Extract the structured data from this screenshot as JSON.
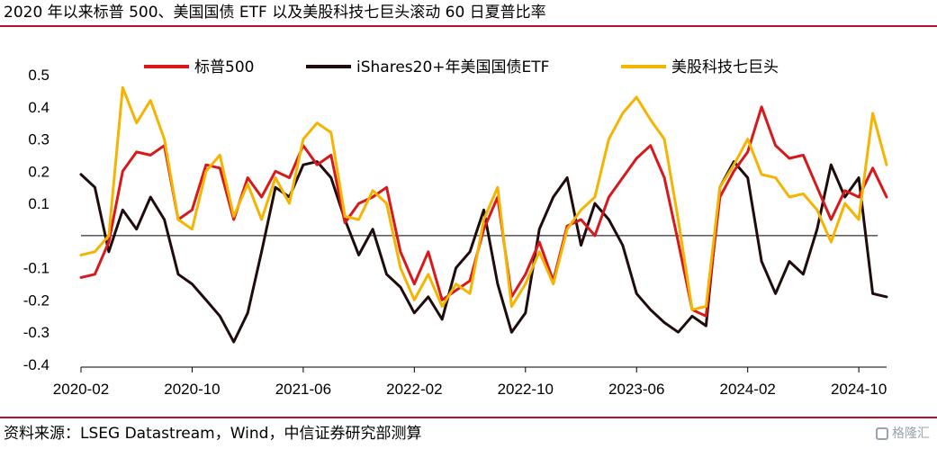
{
  "header": {
    "title": "2020 年以来标普 500、美国国债 ETF 以及美股科技七巨头滚动 60 日夏普比率"
  },
  "footer": {
    "source": "资料来源：LSEG Datastream，Wind，中信证券研究部测算",
    "watermark": "格隆汇"
  },
  "chart_data": {
    "type": "line",
    "title": "2020 年以来标普 500、美国国债 ETF 以及美股科技七巨头滚动 60 日夏普比率",
    "xlabel": "",
    "ylabel": "",
    "x_ticks": [
      "2020-02",
      "2020-10",
      "2021-06",
      "2022-02",
      "2022-10",
      "2023-06",
      "2024-02",
      "2024-10"
    ],
    "y_tick_labels": [
      "0.5",
      "0.4",
      "0.3",
      "0.2",
      "0.1",
      "-0.1",
      "-0.2",
      "-0.3",
      "-0.4"
    ],
    "ylim": [
      -0.4,
      0.5
    ],
    "reference_line": 0,
    "grid": false,
    "legend_position": "top",
    "x_start": "2020-02",
    "x_end": "2024-12",
    "series": [
      {
        "name": "标普500",
        "color": "#d7191c",
        "x": [
          "2020-02",
          "2020-03",
          "2020-04",
          "2020-05",
          "2020-06",
          "2020-07",
          "2020-08",
          "2020-09",
          "2020-10",
          "2020-11",
          "2020-12",
          "2021-01",
          "2021-02",
          "2021-03",
          "2021-04",
          "2021-05",
          "2021-06",
          "2021-07",
          "2021-08",
          "2021-09",
          "2021-10",
          "2021-11",
          "2021-12",
          "2022-01",
          "2022-02",
          "2022-03",
          "2022-04",
          "2022-05",
          "2022-06",
          "2022-07",
          "2022-08",
          "2022-09",
          "2022-10",
          "2022-11",
          "2022-12",
          "2023-01",
          "2023-02",
          "2023-03",
          "2023-04",
          "2023-05",
          "2023-06",
          "2023-07",
          "2023-08",
          "2023-09",
          "2023-10",
          "2023-11",
          "2023-12",
          "2024-01",
          "2024-02",
          "2024-03",
          "2024-04",
          "2024-05",
          "2024-06",
          "2024-07",
          "2024-08",
          "2024-09",
          "2024-10",
          "2024-11",
          "2024-12"
        ],
        "values": [
          -0.13,
          -0.12,
          -0.02,
          0.2,
          0.26,
          0.25,
          0.28,
          0.05,
          0.08,
          0.22,
          0.21,
          0.05,
          0.18,
          0.12,
          0.2,
          0.18,
          0.28,
          0.22,
          0.25,
          0.04,
          0.1,
          0.12,
          0.15,
          -0.05,
          -0.15,
          -0.05,
          -0.2,
          -0.17,
          -0.14,
          0.02,
          0.12,
          -0.19,
          -0.12,
          -0.02,
          -0.14,
          0.03,
          0.05,
          0.0,
          0.12,
          0.18,
          0.24,
          0.28,
          0.18,
          -0.02,
          -0.23,
          -0.25,
          0.12,
          0.2,
          0.26,
          0.4,
          0.28,
          0.24,
          0.25,
          0.15,
          0.05,
          0.14,
          0.12,
          0.21,
          0.12
        ]
      },
      {
        "name": "iShares20+年美国国债ETF",
        "color": "#1f0c0c",
        "x": [
          "2020-02",
          "2020-03",
          "2020-04",
          "2020-05",
          "2020-06",
          "2020-07",
          "2020-08",
          "2020-09",
          "2020-10",
          "2020-11",
          "2020-12",
          "2021-01",
          "2021-02",
          "2021-03",
          "2021-04",
          "2021-05",
          "2021-06",
          "2021-07",
          "2021-08",
          "2021-09",
          "2021-10",
          "2021-11",
          "2021-12",
          "2022-01",
          "2022-02",
          "2022-03",
          "2022-04",
          "2022-05",
          "2022-06",
          "2022-07",
          "2022-08",
          "2022-09",
          "2022-10",
          "2022-11",
          "2022-12",
          "2023-01",
          "2023-02",
          "2023-03",
          "2023-04",
          "2023-05",
          "2023-06",
          "2023-07",
          "2023-08",
          "2023-09",
          "2023-10",
          "2023-11",
          "2023-12",
          "2024-01",
          "2024-02",
          "2024-03",
          "2024-04",
          "2024-05",
          "2024-06",
          "2024-07",
          "2024-08",
          "2024-09",
          "2024-10",
          "2024-11",
          "2024-12"
        ],
        "values": [
          0.19,
          0.15,
          -0.05,
          0.08,
          0.02,
          0.12,
          0.05,
          -0.12,
          -0.15,
          -0.2,
          -0.25,
          -0.33,
          -0.24,
          -0.05,
          0.15,
          0.12,
          0.22,
          0.23,
          0.18,
          0.05,
          -0.06,
          0.02,
          -0.12,
          -0.16,
          -0.24,
          -0.19,
          -0.26,
          -0.1,
          -0.05,
          0.08,
          -0.15,
          -0.3,
          -0.24,
          0.02,
          0.12,
          0.18,
          -0.03,
          0.1,
          0.05,
          -0.03,
          -0.18,
          -0.23,
          -0.27,
          -0.3,
          -0.25,
          -0.28,
          0.15,
          0.23,
          0.18,
          -0.08,
          -0.18,
          -0.08,
          -0.12,
          0.02,
          0.22,
          0.12,
          0.18,
          -0.18,
          -0.19
        ]
      },
      {
        "name": "美股科技七巨头",
        "color": "#f5b400",
        "x": [
          "2020-02",
          "2020-03",
          "2020-04",
          "2020-05",
          "2020-06",
          "2020-07",
          "2020-08",
          "2020-09",
          "2020-10",
          "2020-11",
          "2020-12",
          "2021-01",
          "2021-02",
          "2021-03",
          "2021-04",
          "2021-05",
          "2021-06",
          "2021-07",
          "2021-08",
          "2021-09",
          "2021-10",
          "2021-11",
          "2021-12",
          "2022-01",
          "2022-02",
          "2022-03",
          "2022-04",
          "2022-05",
          "2022-06",
          "2022-07",
          "2022-08",
          "2022-09",
          "2022-10",
          "2022-11",
          "2022-12",
          "2023-01",
          "2023-02",
          "2023-03",
          "2023-04",
          "2023-05",
          "2023-06",
          "2023-07",
          "2023-08",
          "2023-09",
          "2023-10",
          "2023-11",
          "2023-12",
          "2024-01",
          "2024-02",
          "2024-03",
          "2024-04",
          "2024-05",
          "2024-06",
          "2024-07",
          "2024-08",
          "2024-09",
          "2024-10",
          "2024-11",
          "2024-12"
        ],
        "values": [
          -0.06,
          -0.05,
          0.0,
          0.46,
          0.35,
          0.42,
          0.3,
          0.05,
          0.02,
          0.2,
          0.25,
          0.06,
          0.16,
          0.05,
          0.18,
          0.1,
          0.3,
          0.35,
          0.32,
          0.06,
          0.05,
          0.14,
          0.1,
          -0.1,
          -0.2,
          -0.12,
          -0.22,
          -0.15,
          -0.18,
          0.05,
          0.15,
          -0.22,
          -0.15,
          -0.05,
          -0.15,
          0.02,
          0.08,
          0.12,
          0.3,
          0.38,
          0.43,
          0.36,
          0.3,
          0.05,
          -0.23,
          -0.22,
          0.15,
          0.22,
          0.3,
          0.19,
          0.18,
          0.12,
          0.13,
          0.08,
          -0.02,
          0.1,
          0.05,
          0.38,
          0.22
        ]
      }
    ]
  }
}
